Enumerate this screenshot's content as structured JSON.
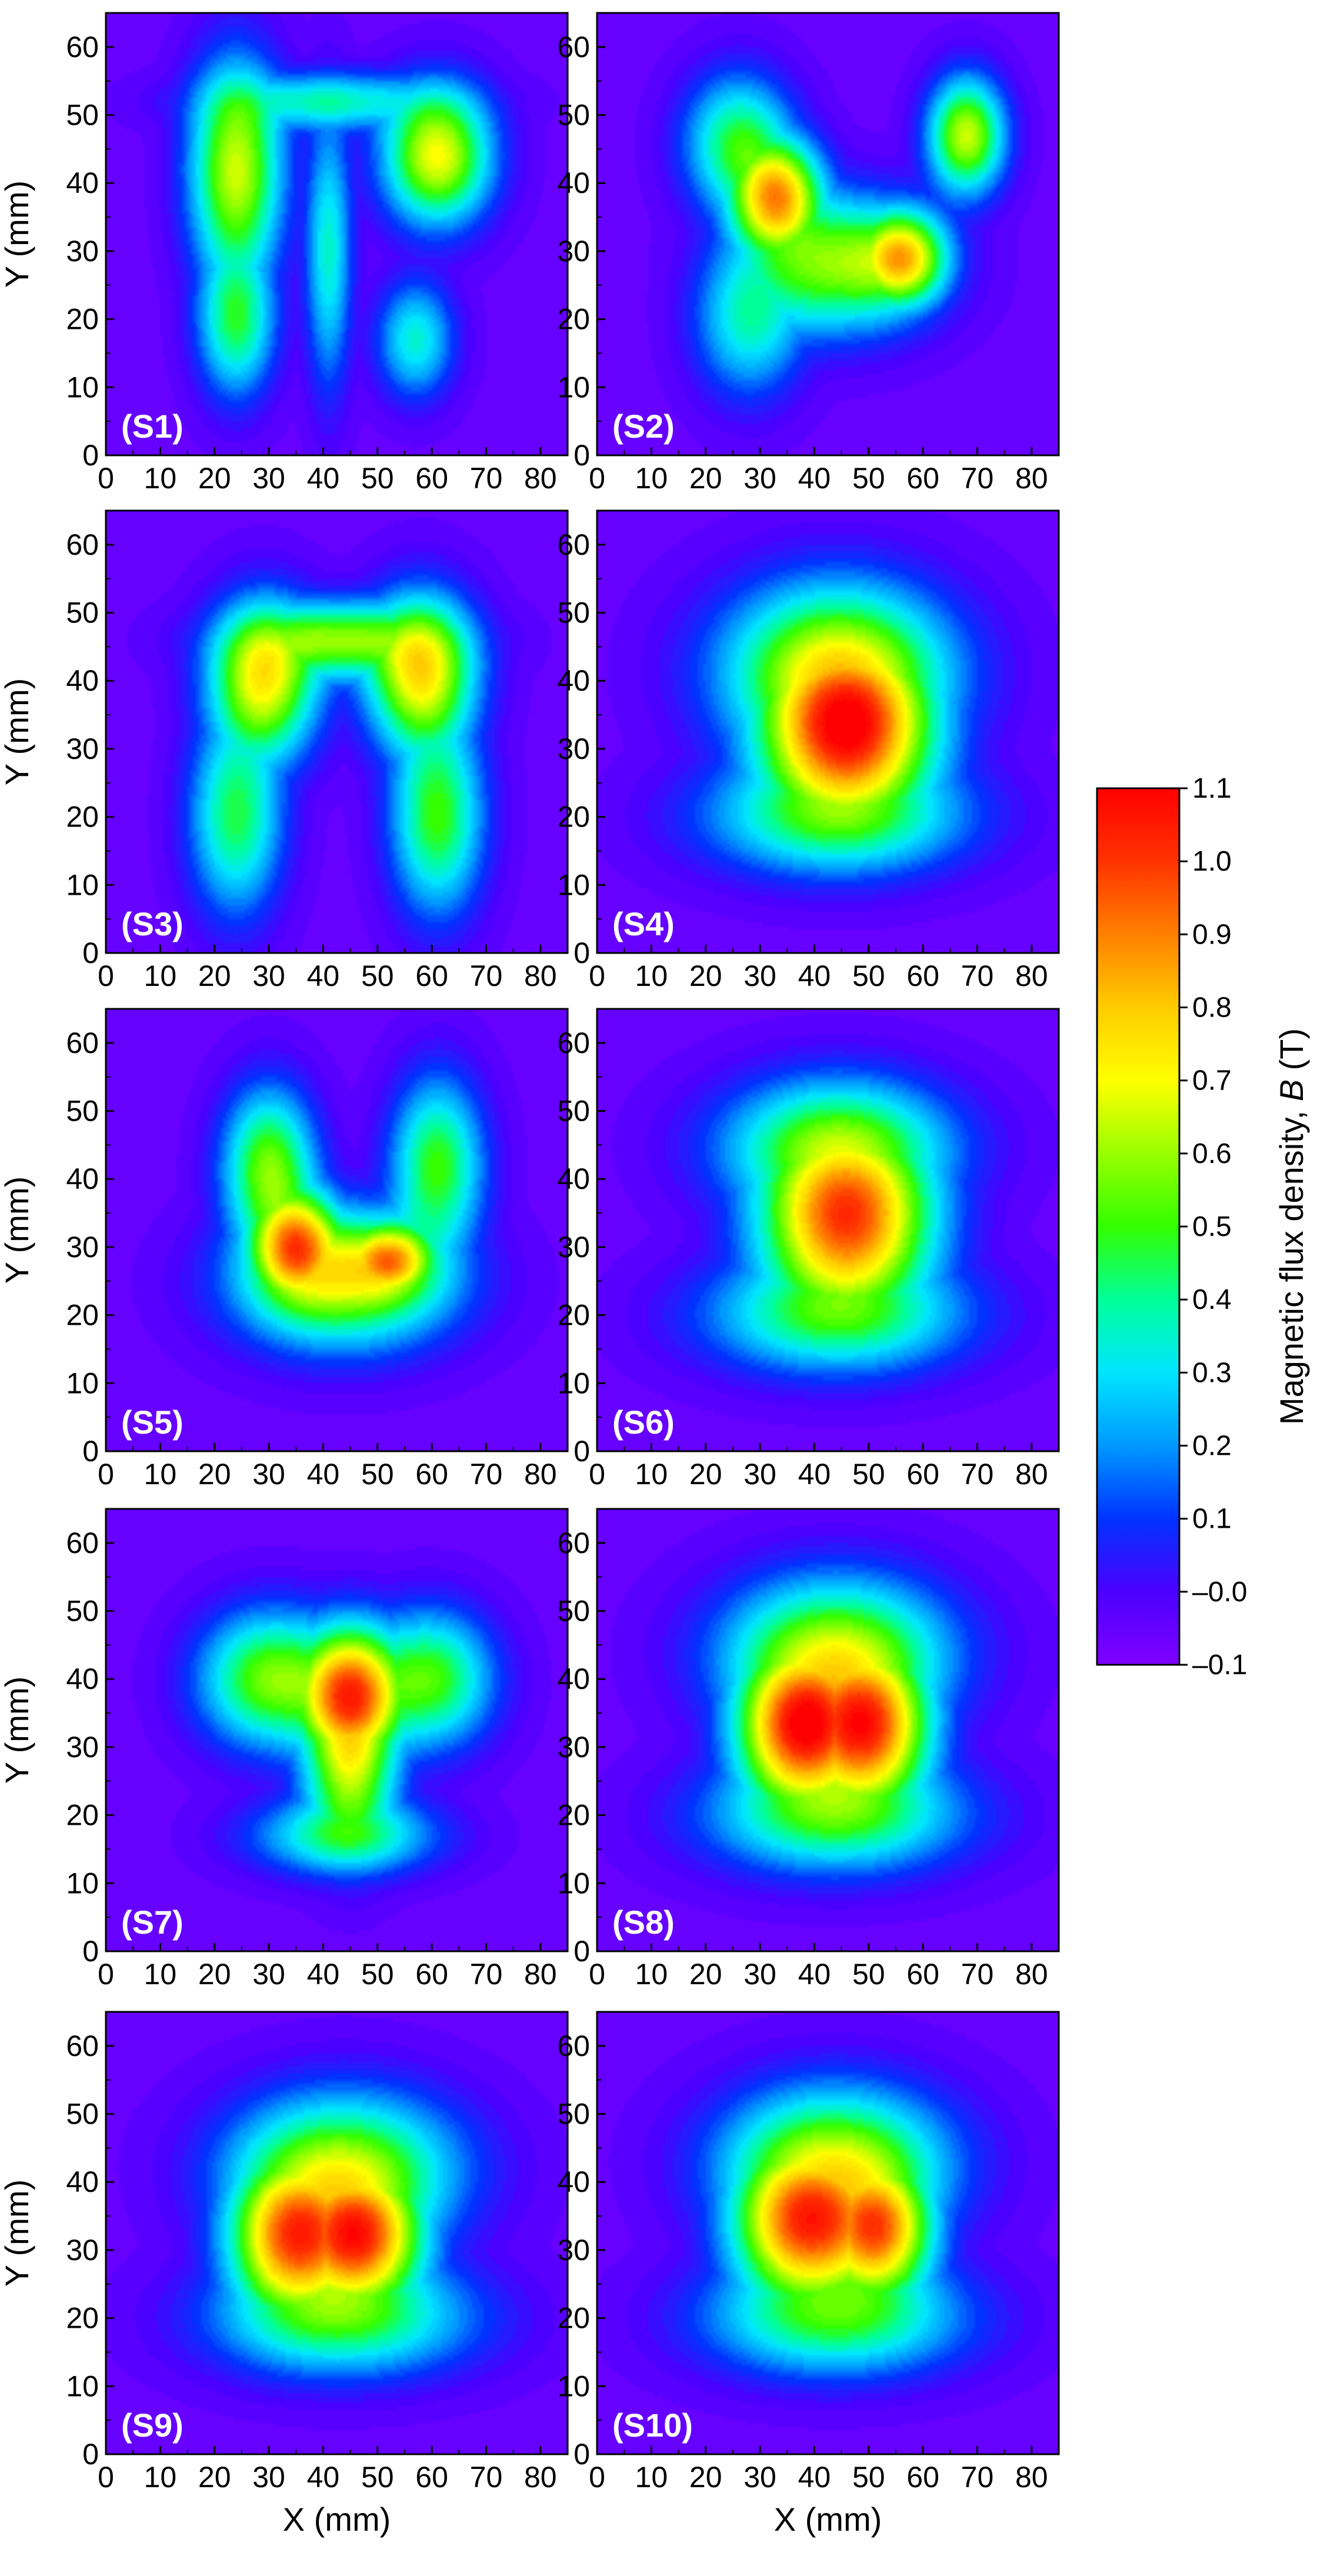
{
  "chart_data": {
    "type": "heatmap",
    "colormap": [
      "#8000ff",
      "#4b00ff",
      "#0033ff",
      "#0099ff",
      "#00e5ff",
      "#00ff99",
      "#33ff00",
      "#99ff00",
      "#ffff00",
      "#ffcc00",
      "#ff8000",
      "#ff3300",
      "#ff0000"
    ],
    "xlabel": "X (mm)",
    "ylabel": "Y (mm)",
    "xlim": [
      0,
      85
    ],
    "ylim": [
      0,
      65
    ],
    "x_ticks": [
      "0",
      "10",
      "20",
      "30",
      "40",
      "50",
      "60",
      "70",
      "80"
    ],
    "y_ticks": [
      "0",
      "10",
      "20",
      "30",
      "40",
      "50",
      "60"
    ],
    "colorbar": {
      "label": "Magnetic flux density, ",
      "label_var": "B",
      "label_unit": " (T)",
      "range": [
        -0.1,
        1.1
      ],
      "ticks": [
        "1.1",
        "1.0",
        "0.9",
        "0.8",
        "0.7",
        "0.6",
        "0.5",
        "0.4",
        "0.3",
        "0.2",
        "0.1",
        "–0.0",
        "–0.1"
      ]
    },
    "panels": [
      {
        "label": "(S1)",
        "peaks": [
          {
            "x": 24,
            "y": 42,
            "v": 0.65,
            "sx": 6,
            "sy": 11
          },
          {
            "x": 24,
            "y": 20,
            "v": 0.45,
            "sx": 5,
            "sy": 8
          },
          {
            "x": 61,
            "y": 44,
            "v": 0.7,
            "sx": 7,
            "sy": 7
          },
          {
            "x": 41,
            "y": 52,
            "v": 0.35,
            "sx": 16,
            "sy": 3
          },
          {
            "x": 57,
            "y": 17,
            "v": 0.35,
            "sx": 5,
            "sy": 6
          },
          {
            "x": 41,
            "y": 30,
            "v": 0.35,
            "sx": 3,
            "sy": 14
          }
        ]
      },
      {
        "label": "(S2)",
        "peaks": [
          {
            "x": 33,
            "y": 38,
            "v": 0.8,
            "sx": 6,
            "sy": 6
          },
          {
            "x": 56,
            "y": 29,
            "v": 0.75,
            "sx": 6,
            "sy": 5
          },
          {
            "x": 44,
            "y": 28,
            "v": 0.55,
            "sx": 12,
            "sy": 7
          },
          {
            "x": 68,
            "y": 47,
            "v": 0.65,
            "sx": 5,
            "sy": 6
          },
          {
            "x": 26,
            "y": 46,
            "v": 0.45,
            "sx": 7,
            "sy": 7
          },
          {
            "x": 28,
            "y": 20,
            "v": 0.35,
            "sx": 7,
            "sy": 8
          }
        ]
      },
      {
        "label": "(S3)",
        "peaks": [
          {
            "x": 29,
            "y": 40,
            "v": 0.7,
            "sx": 7,
            "sy": 8
          },
          {
            "x": 58,
            "y": 41,
            "v": 0.72,
            "sx": 7,
            "sy": 8
          },
          {
            "x": 43,
            "y": 46,
            "v": 0.55,
            "sx": 14,
            "sy": 4
          },
          {
            "x": 24,
            "y": 20,
            "v": 0.45,
            "sx": 6,
            "sy": 10
          },
          {
            "x": 61,
            "y": 20,
            "v": 0.5,
            "sx": 6,
            "sy": 10
          }
        ]
      },
      {
        "label": "(S4)",
        "peaks": [
          {
            "x": 46,
            "y": 33,
            "v": 1.0,
            "sx": 11,
            "sy": 9
          },
          {
            "x": 44,
            "y": 42,
            "v": 0.6,
            "sx": 15,
            "sy": 9
          },
          {
            "x": 44,
            "y": 20,
            "v": 0.45,
            "sx": 17,
            "sy": 6
          }
        ]
      },
      {
        "label": "(S5)",
        "peaks": [
          {
            "x": 35,
            "y": 30,
            "v": 0.82,
            "sx": 6,
            "sy": 6
          },
          {
            "x": 52,
            "y": 28,
            "v": 0.75,
            "sx": 6,
            "sy": 4
          },
          {
            "x": 44,
            "y": 25,
            "v": 0.6,
            "sx": 14,
            "sy": 7
          },
          {
            "x": 30,
            "y": 42,
            "v": 0.55,
            "sx": 6,
            "sy": 8
          },
          {
            "x": 61,
            "y": 42,
            "v": 0.5,
            "sx": 6,
            "sy": 9
          }
        ]
      },
      {
        "label": "(S6)",
        "peaks": [
          {
            "x": 46,
            "y": 34,
            "v": 0.95,
            "sx": 11,
            "sy": 9
          },
          {
            "x": 44,
            "y": 20,
            "v": 0.45,
            "sx": 17,
            "sy": 6
          },
          {
            "x": 44,
            "y": 45,
            "v": 0.5,
            "sx": 15,
            "sy": 7
          }
        ]
      },
      {
        "label": "(S7)",
        "peaks": [
          {
            "x": 45,
            "y": 38,
            "v": 0.85,
            "sx": 7,
            "sy": 7
          },
          {
            "x": 45,
            "y": 28,
            "v": 0.6,
            "sx": 6,
            "sy": 9
          },
          {
            "x": 30,
            "y": 40,
            "v": 0.55,
            "sx": 9,
            "sy": 7
          },
          {
            "x": 60,
            "y": 40,
            "v": 0.5,
            "sx": 8,
            "sy": 7
          },
          {
            "x": 44,
            "y": 17,
            "v": 0.4,
            "sx": 12,
            "sy": 4
          }
        ]
      },
      {
        "label": "(S8)",
        "peaks": [
          {
            "x": 37,
            "y": 33,
            "v": 0.95,
            "sx": 8,
            "sy": 8
          },
          {
            "x": 50,
            "y": 33,
            "v": 0.9,
            "sx": 8,
            "sy": 8
          },
          {
            "x": 44,
            "y": 44,
            "v": 0.55,
            "sx": 15,
            "sy": 8
          },
          {
            "x": 44,
            "y": 20,
            "v": 0.45,
            "sx": 17,
            "sy": 6
          }
        ]
      },
      {
        "label": "(S9)",
        "peaks": [
          {
            "x": 34,
            "y": 32,
            "v": 0.85,
            "sx": 8,
            "sy": 8
          },
          {
            "x": 47,
            "y": 32,
            "v": 0.88,
            "sx": 8,
            "sy": 7
          },
          {
            "x": 44,
            "y": 42,
            "v": 0.55,
            "sx": 15,
            "sy": 8
          },
          {
            "x": 44,
            "y": 20,
            "v": 0.45,
            "sx": 17,
            "sy": 6
          }
        ]
      },
      {
        "label": "(S10)",
        "peaks": [
          {
            "x": 38,
            "y": 34,
            "v": 0.9,
            "sx": 9,
            "sy": 8
          },
          {
            "x": 52,
            "y": 33,
            "v": 0.8,
            "sx": 7,
            "sy": 7
          },
          {
            "x": 44,
            "y": 43,
            "v": 0.55,
            "sx": 15,
            "sy": 8
          },
          {
            "x": 44,
            "y": 20,
            "v": 0.45,
            "sx": 17,
            "sy": 6
          }
        ]
      }
    ]
  }
}
